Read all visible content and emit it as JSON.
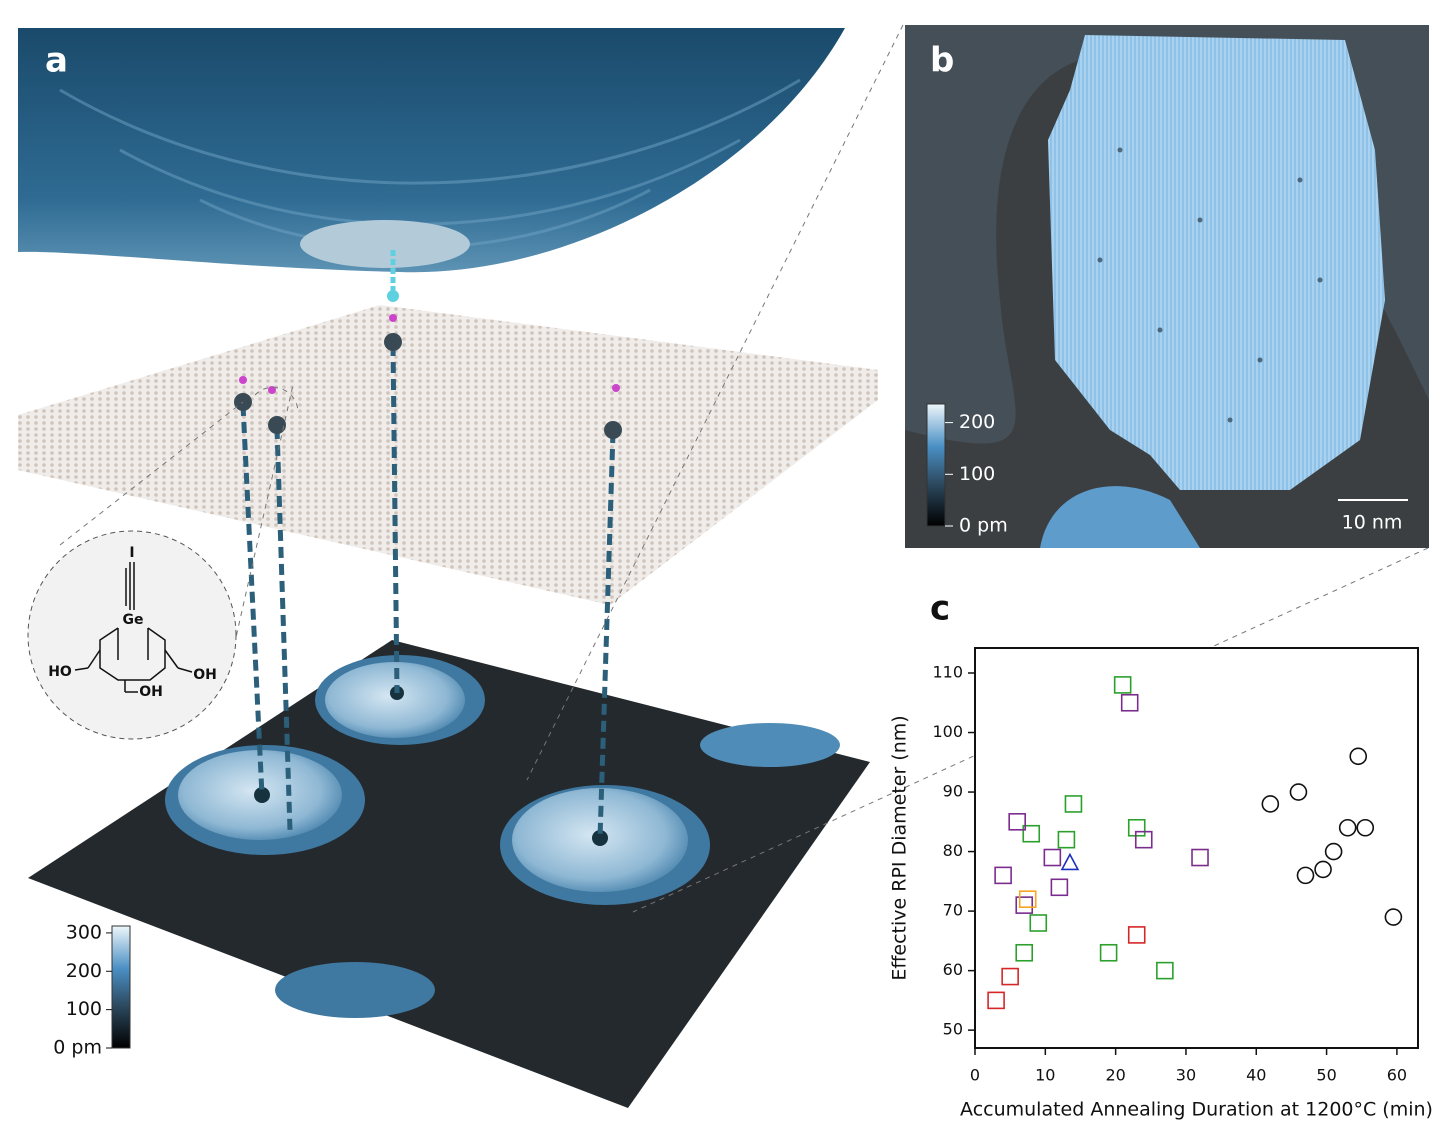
{
  "panel_a": {
    "label": "a",
    "colorbar": {
      "lim": [
        0,
        318
      ],
      "ticks": [
        {
          "value": 0,
          "label": "0 pm"
        },
        100,
        200,
        300
      ]
    },
    "molecule_labels": [
      "I",
      "Ge",
      "HO",
      "OH",
      "OH"
    ]
  },
  "panel_b": {
    "label": "b",
    "colorbar": {
      "lim": [
        0,
        236
      ],
      "ticks": [
        {
          "value": 0,
          "label": "0 pm"
        },
        100,
        200
      ]
    },
    "scale_bar": "10 nm"
  },
  "panel_c": {
    "label": "c"
  },
  "chart_data": {
    "type": "scatter",
    "x_label": "Accumulated Annealing Duration at 1200°C (min)",
    "y_label": "Effective RPI Diameter (nm)",
    "xlim": [
      0,
      63
    ],
    "ylim": [
      47,
      114.2
    ],
    "xticks": [
      0,
      10,
      20,
      30,
      40,
      50,
      60
    ],
    "yticks": [
      50,
      60,
      70,
      80,
      90,
      100,
      110
    ],
    "series": [
      {
        "color": "#d62728",
        "marker": "square",
        "x": [
          3,
          5,
          23
        ],
        "values": [
          55,
          59,
          66
        ]
      },
      {
        "color": "#2ca02c",
        "marker": "square",
        "x": [
          21,
          8,
          14,
          13,
          23,
          7,
          9,
          19,
          27
        ],
        "values": [
          108,
          83,
          88,
          82,
          84,
          63,
          68,
          63,
          60
        ]
      },
      {
        "color": "#7b2d8e",
        "marker": "square",
        "x": [
          22,
          6,
          4,
          11,
          12,
          7,
          24,
          32
        ],
        "values": [
          105,
          85,
          76,
          79,
          74,
          71,
          82,
          79
        ]
      },
      {
        "color": "#f5a623",
        "marker": "square",
        "x": [
          7.5
        ],
        "values": [
          72
        ]
      },
      {
        "color": "#1f2fbf",
        "marker": "triangle",
        "x": [
          13.5
        ],
        "values": [
          78
        ]
      },
      {
        "color": "#111111",
        "marker": "circle",
        "x": [
          42,
          46,
          54.5,
          53,
          55.5,
          51,
          49.5,
          47,
          59.5
        ],
        "values": [
          88,
          90,
          96,
          84,
          84,
          80,
          77,
          76,
          69
        ]
      }
    ]
  }
}
